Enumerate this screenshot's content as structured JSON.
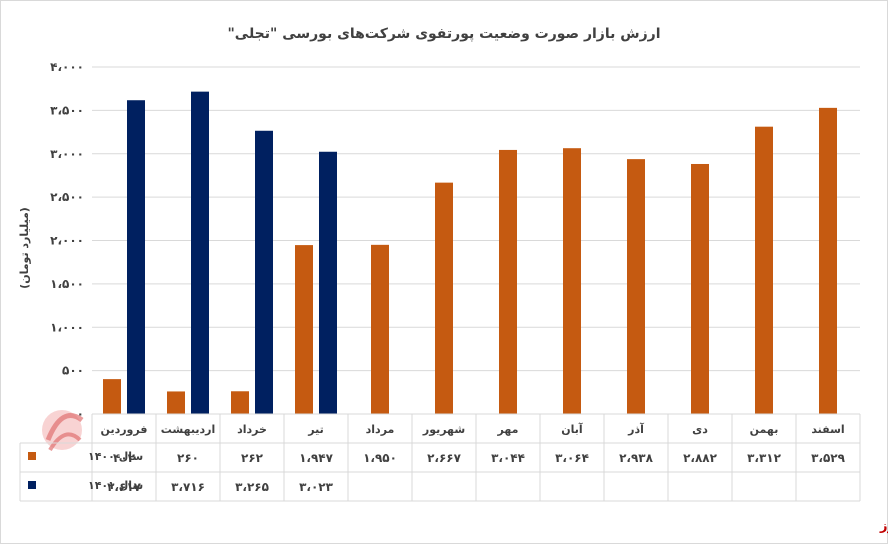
{
  "chart_data": {
    "type": "bar",
    "title": "ارزش بازار صورت وضعیت پورتفوی شرکت‌های بورسی \"تجلی\"",
    "ylabel": "(میلیارد تومان)",
    "ylim": [
      0,
      4000
    ],
    "yticks": [
      0,
      500,
      1000,
      1500,
      2000,
      2500,
      3000,
      3500,
      4000
    ],
    "ytick_labels": [
      "۰",
      "۵۰۰",
      "۱،۰۰۰",
      "۱،۵۰۰",
      "۲،۰۰۰",
      "۲،۵۰۰",
      "۳،۰۰۰",
      "۳،۵۰۰",
      "۴،۰۰۰"
    ],
    "grid": true,
    "categories": [
      "فروردین",
      "اردیبهشت",
      "خرداد",
      "تیر",
      "مرداد",
      "شهریور",
      "مهر",
      "آبان",
      "آذر",
      "دی",
      "بهمن",
      "اسفند"
    ],
    "series": [
      {
        "name": "سال ۱۴۰۰",
        "color": "#c55a11",
        "values": [
          402,
          260,
          262,
          1947,
          1950,
          2667,
          3044,
          3064,
          2938,
          2882,
          3312,
          3529
        ],
        "labels": [
          "۴۰۲",
          "۲۶۰",
          "۲۶۲",
          "۱،۹۴۷",
          "۱،۹۵۰",
          "۲،۶۶۷",
          "۳،۰۴۴",
          "۳،۰۶۴",
          "۲،۹۳۸",
          "۲،۸۸۲",
          "۳،۳۱۲",
          "۳،۵۲۹"
        ]
      },
      {
        "name": "سال ۱۴۰۱",
        "color": "#002060",
        "values": [
          3617,
          3716,
          3265,
          3023,
          null,
          null,
          null,
          null,
          null,
          null,
          null,
          null
        ],
        "labels": [
          "۳،۶۱۷",
          "۳،۷۱۶",
          "۳،۲۶۵",
          "۳،۰۲۳",
          "",
          "",
          "",
          "",
          "",
          "",
          "",
          ""
        ]
      }
    ]
  },
  "brand": "بورس نیوز"
}
